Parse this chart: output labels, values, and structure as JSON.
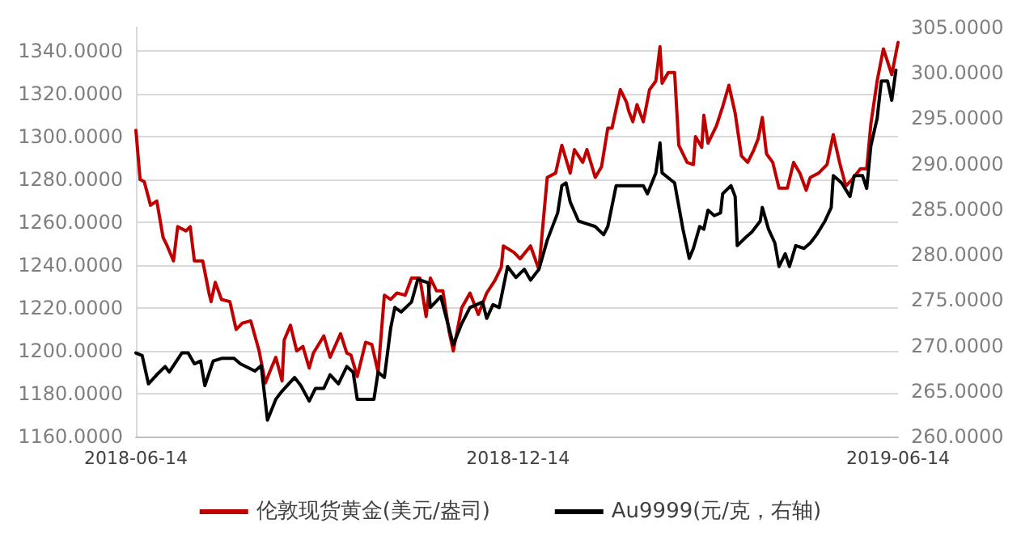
{
  "chart_data": {
    "type": "line",
    "xlim": [
      "2018-06-14",
      "2019-06-14"
    ],
    "xticks": [
      "2018-06-14",
      "2018-12-14",
      "2019-06-14"
    ],
    "ylim": [
      1160,
      1351
    ],
    "yticks": [
      {
        "value": 1160,
        "label": "1160.0000"
      },
      {
        "value": 1180,
        "label": "1180.0000"
      },
      {
        "value": 1200,
        "label": "1200.0000"
      },
      {
        "value": 1220,
        "label": "1220.0000"
      },
      {
        "value": 1240,
        "label": "1240.0000"
      },
      {
        "value": 1260,
        "label": "1260.0000"
      },
      {
        "value": 1280,
        "label": "1280.0000"
      },
      {
        "value": 1300,
        "label": "1300.0000"
      },
      {
        "value": 1320,
        "label": "1320.0000"
      },
      {
        "value": 1340,
        "label": "1340.0000"
      }
    ],
    "y2lim": [
      260,
      305
    ],
    "y2ticks": [
      {
        "value": 260,
        "label": "260.0000"
      },
      {
        "value": 265,
        "label": "265.0000"
      },
      {
        "value": 270,
        "label": "270.0000"
      },
      {
        "value": 275,
        "label": "275.0000"
      },
      {
        "value": 280,
        "label": "280.0000"
      },
      {
        "value": 285,
        "label": "285.0000"
      },
      {
        "value": 290,
        "label": "290.0000"
      },
      {
        "value": 295,
        "label": "295.0000"
      },
      {
        "value": 300,
        "label": "300.0000"
      },
      {
        "value": 305,
        "label": "305.0000"
      }
    ],
    "grid": "y",
    "legend": "bottom",
    "marker": "none",
    "line_style": "solid",
    "series": [
      {
        "name": "伦敦现货黄金(美元/盎司)",
        "color": "#c00000",
        "x": [
          "2018-06-14",
          "2018-06-16",
          "2018-06-18",
          "2018-06-21",
          "2018-06-24",
          "2018-06-27",
          "2018-06-29",
          "2018-07-02",
          "2018-07-04",
          "2018-07-08",
          "2018-07-10",
          "2018-07-12",
          "2018-07-16",
          "2018-07-19",
          "2018-07-20",
          "2018-07-22",
          "2018-07-25",
          "2018-07-29",
          "2018-08-01",
          "2018-08-04",
          "2018-08-08",
          "2018-08-12",
          "2018-08-15",
          "2018-08-17",
          "2018-08-20",
          "2018-08-23",
          "2018-08-24",
          "2018-08-27",
          "2018-08-30",
          "2018-09-02",
          "2018-09-05",
          "2018-09-07",
          "2018-09-12",
          "2018-09-15",
          "2018-09-20",
          "2018-09-23",
          "2018-09-25",
          "2018-09-28",
          "2018-10-02",
          "2018-10-05",
          "2018-10-08",
          "2018-10-11",
          "2018-10-14",
          "2018-10-17",
          "2018-10-21",
          "2018-10-24",
          "2018-10-28",
          "2018-10-31",
          "2018-11-02",
          "2018-11-05",
          "2018-11-08",
          "2018-11-11",
          "2018-11-13",
          "2018-11-17",
          "2018-11-21",
          "2018-11-25",
          "2018-11-29",
          "2018-12-03",
          "2018-12-06",
          "2018-12-07",
          "2018-12-12",
          "2018-12-15",
          "2018-12-20",
          "2018-12-24",
          "2018-12-28",
          "2019-01-01",
          "2019-01-04",
          "2019-01-08",
          "2019-01-10",
          "2019-01-14",
          "2019-01-16",
          "2019-01-20",
          "2019-01-23",
          "2019-01-26",
          "2019-01-28",
          "2019-02-01",
          "2019-02-04",
          "2019-02-05",
          "2019-02-07",
          "2019-02-09",
          "2019-02-12",
          "2019-02-15",
          "2019-02-18",
          "2019-02-20",
          "2019-02-21",
          "2019-02-24",
          "2019-02-27",
          "2019-03-01",
          "2019-03-05",
          "2019-03-08",
          "2019-03-09",
          "2019-03-12",
          "2019-03-13",
          "2019-03-15",
          "2019-03-19",
          "2019-03-22",
          "2019-03-25",
          "2019-03-28",
          "2019-03-31",
          "2019-04-03",
          "2019-04-06",
          "2019-04-08",
          "2019-04-10",
          "2019-04-12",
          "2019-04-15",
          "2019-04-18",
          "2019-04-22",
          "2019-04-25",
          "2019-04-28",
          "2019-05-01",
          "2019-05-03",
          "2019-05-07",
          "2019-05-11",
          "2019-05-14",
          "2019-05-17",
          "2019-05-20",
          "2019-05-23",
          "2019-05-27",
          "2019-05-30",
          "2019-06-01",
          "2019-06-04",
          "2019-06-07",
          "2019-06-11",
          "2019-06-14"
        ],
        "values": [
          1303,
          1280,
          1279,
          1268,
          1270,
          1253,
          1249,
          1242,
          1258,
          1256,
          1258,
          1242,
          1242,
          1227,
          1223,
          1232,
          1224,
          1223,
          1210,
          1213,
          1214,
          1200,
          1185,
          1190,
          1197,
          1186,
          1205,
          1212,
          1200,
          1202,
          1192,
          1199,
          1207,
          1197,
          1208,
          1199,
          1198,
          1188,
          1204,
          1203,
          1190,
          1226,
          1224,
          1227,
          1226,
          1234,
          1234,
          1216,
          1234,
          1228,
          1228,
          1209,
          1200,
          1220,
          1227,
          1217,
          1227,
          1233,
          1239,
          1249,
          1246,
          1243,
          1249,
          1238,
          1281,
          1283,
          1296,
          1283,
          1294,
          1288,
          1294,
          1281,
          1286,
          1304,
          1304,
          1322,
          1316,
          1312,
          1307,
          1315,
          1307,
          1322,
          1326,
          1342,
          1325,
          1330,
          1330,
          1296,
          1288,
          1287,
          1300,
          1295,
          1310,
          1297,
          1305,
          1314,
          1324,
          1311,
          1291,
          1288,
          1294,
          1299,
          1309,
          1292,
          1288,
          1276,
          1276,
          1288,
          1283,
          1275,
          1281,
          1283,
          1287,
          1301,
          1288,
          1277,
          1280,
          1285,
          1285,
          1306,
          1326,
          1341,
          1329,
          1344
        ]
      },
      {
        "name": "Au9999(元/克，右轴)",
        "color": "#000000",
        "axis": "y2",
        "x": [
          "2018-06-14",
          "2018-06-17",
          "2018-06-20",
          "2018-06-24",
          "2018-06-28",
          "2018-06-30",
          "2018-07-06",
          "2018-07-09",
          "2018-07-12",
          "2018-07-15",
          "2018-07-17",
          "2018-07-21",
          "2018-07-25",
          "2018-07-31",
          "2018-08-03",
          "2018-08-10",
          "2018-08-13",
          "2018-08-16",
          "2018-08-20",
          "2018-08-23",
          "2018-08-29",
          "2018-09-01",
          "2018-09-05",
          "2018-09-08",
          "2018-09-12",
          "2018-09-15",
          "2018-09-19",
          "2018-09-23",
          "2018-09-26",
          "2018-09-28",
          "2018-10-06",
          "2018-10-08",
          "2018-10-11",
          "2018-10-14",
          "2018-10-16",
          "2018-10-19",
          "2018-10-24",
          "2018-10-27",
          "2018-11-01",
          "2018-11-02",
          "2018-11-07",
          "2018-11-13",
          "2018-11-17",
          "2018-11-21",
          "2018-11-27",
          "2018-11-29",
          "2018-12-02",
          "2018-12-05",
          "2018-12-09",
          "2018-12-13",
          "2018-12-17",
          "2018-12-20",
          "2018-12-24",
          "2018-12-28",
          "2019-01-02",
          "2019-01-04",
          "2019-01-06",
          "2019-01-08",
          "2019-01-12",
          "2019-01-16",
          "2019-01-20",
          "2019-01-24",
          "2019-01-26",
          "2019-01-30",
          "2019-02-05",
          "2019-02-12",
          "2019-02-14",
          "2019-02-18",
          "2019-02-20",
          "2019-02-21",
          "2019-02-27",
          "2019-03-03",
          "2019-03-06",
          "2019-03-08",
          "2019-03-11",
          "2019-03-13",
          "2019-03-15",
          "2019-03-18",
          "2019-03-21",
          "2019-03-22",
          "2019-03-26",
          "2019-03-28",
          "2019-03-29",
          "2019-04-02",
          "2019-04-05",
          "2019-04-09",
          "2019-04-10",
          "2019-04-13",
          "2019-04-16",
          "2019-04-18",
          "2019-04-21",
          "2019-04-23",
          "2019-04-26",
          "2019-04-30",
          "2019-05-03",
          "2019-05-06",
          "2019-05-10",
          "2019-05-13",
          "2019-05-14",
          "2019-05-18",
          "2019-05-22",
          "2019-05-24",
          "2019-05-28",
          "2019-05-30",
          "2019-06-01",
          "2019-06-04",
          "2019-06-06",
          "2019-06-09",
          "2019-06-11",
          "2019-06-13"
        ],
        "values": [
          269.2,
          268.9,
          265.8,
          266.8,
          267.7,
          267.1,
          269.2,
          269.2,
          268.0,
          268.3,
          265.6,
          268.3,
          268.6,
          268.6,
          268.0,
          267.2,
          267.8,
          261.8,
          264.1,
          265.0,
          266.5,
          265.6,
          263.9,
          265.3,
          265.3,
          266.8,
          265.8,
          267.7,
          267.1,
          264.1,
          264.1,
          267.1,
          266.5,
          271.9,
          274.2,
          273.7,
          274.8,
          277.3,
          276.9,
          274.2,
          275.4,
          270.1,
          272.4,
          274.2,
          274.8,
          273.0,
          274.5,
          274.2,
          278.7,
          277.5,
          278.4,
          277.2,
          278.4,
          281.6,
          284.6,
          287.6,
          287.9,
          285.8,
          283.7,
          283.4,
          283.1,
          282.2,
          283.1,
          287.6,
          287.6,
          287.6,
          286.7,
          289.0,
          292.3,
          289.0,
          287.9,
          282.8,
          279.6,
          280.7,
          283.1,
          282.8,
          284.9,
          284.3,
          284.6,
          286.7,
          287.6,
          286.4,
          281.0,
          281.9,
          282.5,
          283.7,
          285.2,
          282.8,
          281.3,
          278.7,
          280.1,
          278.7,
          281.0,
          280.7,
          281.3,
          282.2,
          283.7,
          285.2,
          288.7,
          287.9,
          286.4,
          288.7,
          288.7,
          287.3,
          292.0,
          295.0,
          299.1,
          299.1,
          297.0,
          300.3
        ]
      }
    ]
  }
}
